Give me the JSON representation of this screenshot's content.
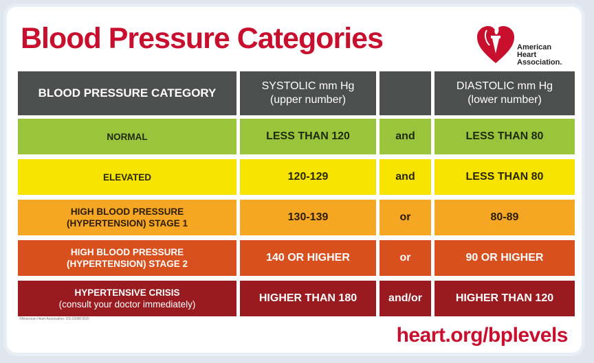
{
  "title": "Blood Pressure Categories",
  "logo": {
    "icon": "heart-torch-icon",
    "line1": "American",
    "line2": "Heart",
    "line3": "Association."
  },
  "colors": {
    "brand_red": "#c8102e",
    "header": "#4d4f4f",
    "normal": "#99c43c",
    "elevated": "#f6e400",
    "stage1": "#f5a623",
    "stage2": "#d9501f",
    "crisis": "#9a1b1f"
  },
  "table": {
    "header": {
      "category": "BLOOD PRESSURE CATEGORY",
      "systolic_line1": "SYSTOLIC mm Hg",
      "systolic_line2": "(upper number)",
      "connector": "",
      "diastolic_line1": "DIASTOLIC mm Hg",
      "diastolic_line2": "(lower number)"
    },
    "rows": [
      {
        "category_line1": "NORMAL",
        "category_line2": "",
        "systolic": "LESS THAN 120",
        "connector": "and",
        "diastolic": "LESS THAN 80"
      },
      {
        "category_line1": "ELEVATED",
        "category_line2": "",
        "systolic": "120-129",
        "connector": "and",
        "diastolic": "LESS THAN 80"
      },
      {
        "category_line1": "HIGH BLOOD PRESSURE",
        "category_line2": "(HYPERTENSION) STAGE 1",
        "systolic": "130-139",
        "connector": "or",
        "diastolic": "80-89"
      },
      {
        "category_line1": "HIGH BLOOD PRESSURE",
        "category_line2": "(HYPERTENSION) STAGE 2",
        "systolic": "140 OR HIGHER",
        "connector": "or",
        "diastolic": "90 OR HIGHER"
      },
      {
        "category_line1": "HYPERTENSIVE CRISIS",
        "category_line2": "(consult your doctor immediately)",
        "systolic": "HIGHER THAN 180",
        "connector": "and/or",
        "diastolic": "HIGHER THAN 120"
      }
    ]
  },
  "copyright": "©American Heart Association. DS-15080 8/20",
  "url": "heart.org/bplevels"
}
